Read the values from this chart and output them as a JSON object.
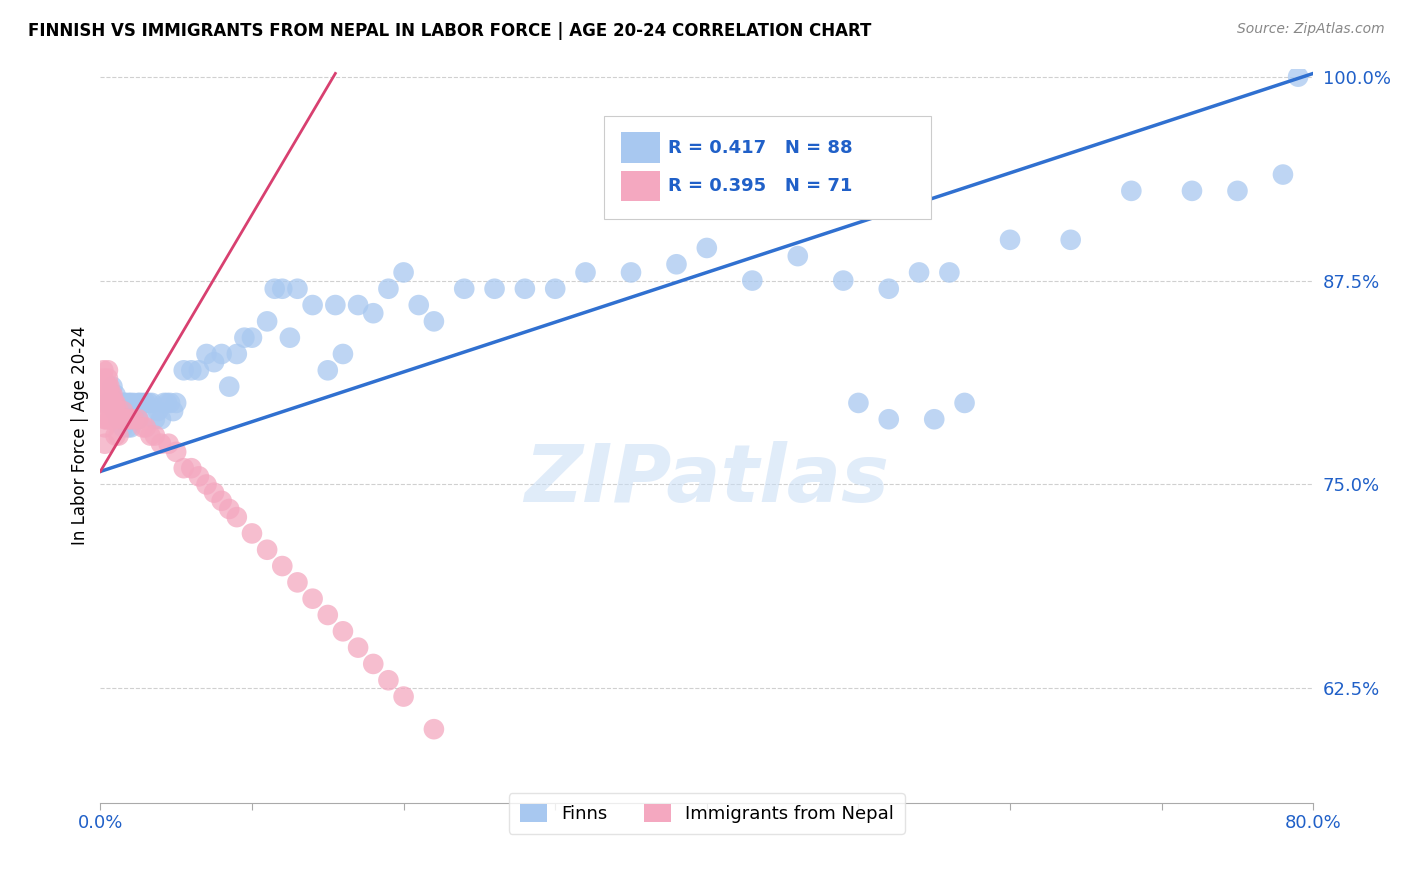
{
  "title": "FINNISH VS IMMIGRANTS FROM NEPAL IN LABOR FORCE | AGE 20-24 CORRELATION CHART",
  "source": "Source: ZipAtlas.com",
  "ylabel": "In Labor Force | Age 20-24",
  "xlim": [
    0.0,
    0.8
  ],
  "ylim": [
    0.555,
    1.005
  ],
  "xticks": [
    0.0,
    0.1,
    0.2,
    0.3,
    0.4,
    0.5,
    0.6,
    0.7,
    0.8
  ],
  "xticklabels": [
    "0.0%",
    "",
    "",
    "",
    "",
    "",
    "",
    "",
    "80.0%"
  ],
  "yticks_right": [
    0.625,
    0.75,
    0.875,
    1.0
  ],
  "ytick_right_labels": [
    "62.5%",
    "75.0%",
    "87.5%",
    "100.0%"
  ],
  "blue_R": 0.417,
  "blue_N": 88,
  "pink_R": 0.395,
  "pink_N": 71,
  "blue_color": "#a8c8f0",
  "pink_color": "#f4a8c0",
  "blue_line_color": "#3070d0",
  "pink_line_color": "#d84070",
  "legend_label_blue": "Finns",
  "legend_label_pink": "Immigrants from Nepal",
  "watermark": "ZIPatlas",
  "blue_line_x": [
    0.0,
    0.8
  ],
  "blue_line_y": [
    0.758,
    1.002
  ],
  "pink_line_x": [
    0.0,
    0.155
  ],
  "pink_line_y": [
    0.758,
    1.002
  ],
  "blue_scatter_x": [
    0.005,
    0.008,
    0.008,
    0.01,
    0.01,
    0.012,
    0.013,
    0.014,
    0.015,
    0.015,
    0.016,
    0.017,
    0.017,
    0.018,
    0.018,
    0.019,
    0.02,
    0.02,
    0.021,
    0.022,
    0.022,
    0.023,
    0.024,
    0.025,
    0.025,
    0.026,
    0.028,
    0.03,
    0.032,
    0.034,
    0.036,
    0.038,
    0.04,
    0.042,
    0.044,
    0.046,
    0.048,
    0.05,
    0.055,
    0.06,
    0.065,
    0.07,
    0.075,
    0.08,
    0.085,
    0.09,
    0.095,
    0.1,
    0.11,
    0.115,
    0.12,
    0.125,
    0.13,
    0.14,
    0.15,
    0.155,
    0.16,
    0.17,
    0.18,
    0.19,
    0.2,
    0.21,
    0.22,
    0.24,
    0.26,
    0.28,
    0.3,
    0.32,
    0.35,
    0.38,
    0.4,
    0.43,
    0.46,
    0.49,
    0.52,
    0.54,
    0.56,
    0.6,
    0.64,
    0.68,
    0.72,
    0.75,
    0.78,
    0.79,
    0.5,
    0.52,
    0.55,
    0.57
  ],
  "blue_scatter_y": [
    0.8,
    0.8,
    0.81,
    0.795,
    0.805,
    0.79,
    0.8,
    0.795,
    0.785,
    0.8,
    0.8,
    0.79,
    0.8,
    0.785,
    0.795,
    0.8,
    0.785,
    0.8,
    0.79,
    0.79,
    0.8,
    0.795,
    0.795,
    0.79,
    0.8,
    0.8,
    0.8,
    0.8,
    0.8,
    0.8,
    0.79,
    0.795,
    0.79,
    0.8,
    0.8,
    0.8,
    0.795,
    0.8,
    0.82,
    0.82,
    0.82,
    0.83,
    0.825,
    0.83,
    0.81,
    0.83,
    0.84,
    0.84,
    0.85,
    0.87,
    0.87,
    0.84,
    0.87,
    0.86,
    0.82,
    0.86,
    0.83,
    0.86,
    0.855,
    0.87,
    0.88,
    0.86,
    0.85,
    0.87,
    0.87,
    0.87,
    0.87,
    0.88,
    0.88,
    0.885,
    0.895,
    0.875,
    0.89,
    0.875,
    0.87,
    0.88,
    0.88,
    0.9,
    0.9,
    0.93,
    0.93,
    0.93,
    0.94,
    1.0,
    0.8,
    0.79,
    0.79,
    0.8
  ],
  "pink_scatter_x": [
    0.002,
    0.002,
    0.002,
    0.002,
    0.002,
    0.003,
    0.003,
    0.003,
    0.003,
    0.003,
    0.003,
    0.004,
    0.004,
    0.004,
    0.004,
    0.005,
    0.005,
    0.005,
    0.005,
    0.005,
    0.006,
    0.006,
    0.006,
    0.006,
    0.007,
    0.007,
    0.007,
    0.008,
    0.008,
    0.008,
    0.009,
    0.009,
    0.01,
    0.01,
    0.01,
    0.012,
    0.012,
    0.014,
    0.015,
    0.016,
    0.018,
    0.02,
    0.022,
    0.025,
    0.028,
    0.03,
    0.033,
    0.036,
    0.04,
    0.045,
    0.05,
    0.055,
    0.06,
    0.065,
    0.07,
    0.075,
    0.08,
    0.085,
    0.09,
    0.1,
    0.11,
    0.12,
    0.13,
    0.14,
    0.15,
    0.16,
    0.17,
    0.18,
    0.19,
    0.2,
    0.22
  ],
  "pink_scatter_y": [
    0.8,
    0.805,
    0.81,
    0.815,
    0.82,
    0.8,
    0.805,
    0.81,
    0.79,
    0.785,
    0.775,
    0.8,
    0.805,
    0.81,
    0.79,
    0.8,
    0.805,
    0.81,
    0.815,
    0.82,
    0.8,
    0.805,
    0.81,
    0.79,
    0.8,
    0.805,
    0.79,
    0.8,
    0.805,
    0.79,
    0.8,
    0.79,
    0.8,
    0.795,
    0.78,
    0.795,
    0.78,
    0.79,
    0.795,
    0.79,
    0.79,
    0.79,
    0.79,
    0.79,
    0.785,
    0.785,
    0.78,
    0.78,
    0.775,
    0.775,
    0.77,
    0.76,
    0.76,
    0.755,
    0.75,
    0.745,
    0.74,
    0.735,
    0.73,
    0.72,
    0.71,
    0.7,
    0.69,
    0.68,
    0.67,
    0.66,
    0.65,
    0.64,
    0.63,
    0.62,
    0.6
  ]
}
